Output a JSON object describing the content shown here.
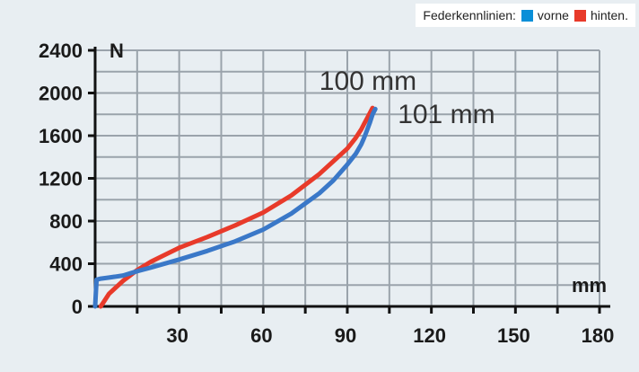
{
  "legend": {
    "title": "Federkennlinien:",
    "front_label": "vorne",
    "rear_label": "hinten."
  },
  "chart_data": {
    "type": "line",
    "xlabel": "mm",
    "ylabel": "N",
    "xlim": [
      0,
      180
    ],
    "ylim": [
      0,
      2400
    ],
    "x_ticks": [
      30,
      60,
      90,
      120,
      150,
      180
    ],
    "x_minor_ticks": [
      15,
      45,
      75,
      105,
      135,
      165
    ],
    "y_ticks": [
      0,
      400,
      800,
      1200,
      1600,
      2000,
      2400
    ],
    "grid": true,
    "series": [
      {
        "name": "vorne",
        "color": "#3a78c8",
        "x": [
          0,
          0.5,
          2,
          5,
          10,
          15,
          20,
          30,
          40,
          50,
          60,
          70,
          80,
          85,
          90,
          93,
          95,
          96,
          97,
          98,
          99,
          100
        ],
        "y": [
          0,
          250,
          260,
          270,
          290,
          330,
          365,
          440,
          520,
          610,
          720,
          870,
          1060,
          1180,
          1330,
          1430,
          1520,
          1580,
          1650,
          1720,
          1800,
          1850
        ]
      },
      {
        "name": "hinten",
        "color": "#e83a2a",
        "x": [
          2,
          3,
          5,
          10,
          15,
          20,
          30,
          40,
          50,
          60,
          70,
          80,
          85,
          90,
          93,
          95,
          96,
          97,
          98,
          99
        ],
        "y": [
          0,
          40,
          120,
          240,
          340,
          420,
          550,
          650,
          760,
          880,
          1040,
          1240,
          1360,
          1480,
          1580,
          1660,
          1710,
          1760,
          1810,
          1860
        ]
      }
    ],
    "annotations": [
      {
        "text": "100 mm",
        "x": 80,
        "y": 2030
      },
      {
        "text": "101 mm",
        "x": 108,
        "y": 1720
      }
    ]
  }
}
